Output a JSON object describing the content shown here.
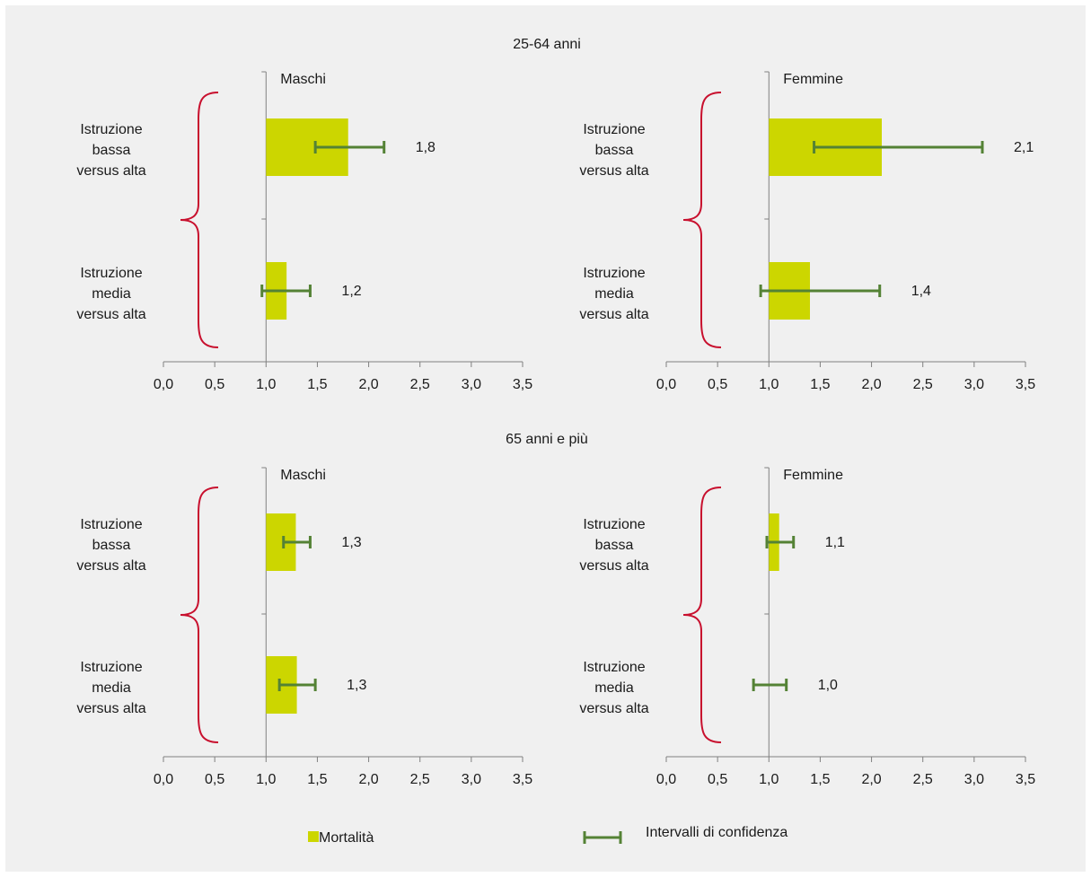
{
  "colors": {
    "background": "#f0f0f0",
    "bar": "#ccd600",
    "error_bar": "#548235",
    "brace": "#c8102e",
    "axis": "#808080"
  },
  "sections": [
    {
      "title": "25-64 anni"
    },
    {
      "title": "65 anni e più"
    }
  ],
  "legend": {
    "bar_label": "Mortalità",
    "ci_label": "Intervalli di confidenza"
  },
  "chart_data": [
    {
      "type": "bar",
      "orientation": "horizontal",
      "section": "25-64 anni",
      "title": "Maschi",
      "categories": [
        "Istruzione\nbassa\nversus alta",
        "Istruzione\nmedia\nversus alta"
      ],
      "values": [
        1.8,
        1.2
      ],
      "value_labels": [
        "1,8",
        "1,2"
      ],
      "ci_low": [
        1.48,
        0.96
      ],
      "ci_high": [
        2.15,
        1.43
      ],
      "xlim": [
        0,
        3.5
      ],
      "bar_base": 1.0,
      "xticks": [
        "0,0",
        "0,5",
        "1,0",
        "1,5",
        "2,0",
        "2,5",
        "3,0",
        "3,5"
      ]
    },
    {
      "type": "bar",
      "orientation": "horizontal",
      "section": "25-64 anni",
      "title": "Femmine",
      "categories": [
        "Istruzione\nbassa\nversus alta",
        "Istruzione\nmedia\nversus alta"
      ],
      "values": [
        2.1,
        1.4
      ],
      "value_labels": [
        "2,1",
        "1,4"
      ],
      "ci_low": [
        1.44,
        0.92
      ],
      "ci_high": [
        3.08,
        2.08
      ],
      "xlim": [
        0,
        3.5
      ],
      "bar_base": 1.0,
      "xticks": [
        "0,0",
        "0,5",
        "1,0",
        "1,5",
        "2,0",
        "2,5",
        "3,0",
        "3,5"
      ]
    },
    {
      "type": "bar",
      "orientation": "horizontal",
      "section": "65 anni e più",
      "title": "Maschi",
      "categories": [
        "Istruzione\nbassa\nversus alta",
        "Istruzione\nmedia\nversus alta"
      ],
      "values": [
        1.29,
        1.3
      ],
      "value_labels": [
        "1,3",
        "1,3"
      ],
      "ci_low": [
        1.17,
        1.13
      ],
      "ci_high": [
        1.43,
        1.48
      ],
      "xlim": [
        0,
        3.5
      ],
      "bar_base": 1.0,
      "xticks": [
        "0,0",
        "0,5",
        "1,0",
        "1,5",
        "2,0",
        "2,5",
        "3,0",
        "3,5"
      ]
    },
    {
      "type": "bar",
      "orientation": "horizontal",
      "section": "65 anni e più",
      "title": "Femmine",
      "categories": [
        "Istruzione\nbassa\nversus alta",
        "Istruzione\nmedia\nversus alta"
      ],
      "values": [
        1.1,
        1.0
      ],
      "value_labels": [
        "1,1",
        "1,0"
      ],
      "ci_low": [
        0.98,
        0.85
      ],
      "ci_high": [
        1.24,
        1.17
      ],
      "xlim": [
        0,
        3.5
      ],
      "bar_base": 1.0,
      "xticks": [
        "0,0",
        "0,5",
        "1,0",
        "1,5",
        "2,0",
        "2,5",
        "3,0",
        "3,5"
      ]
    }
  ]
}
